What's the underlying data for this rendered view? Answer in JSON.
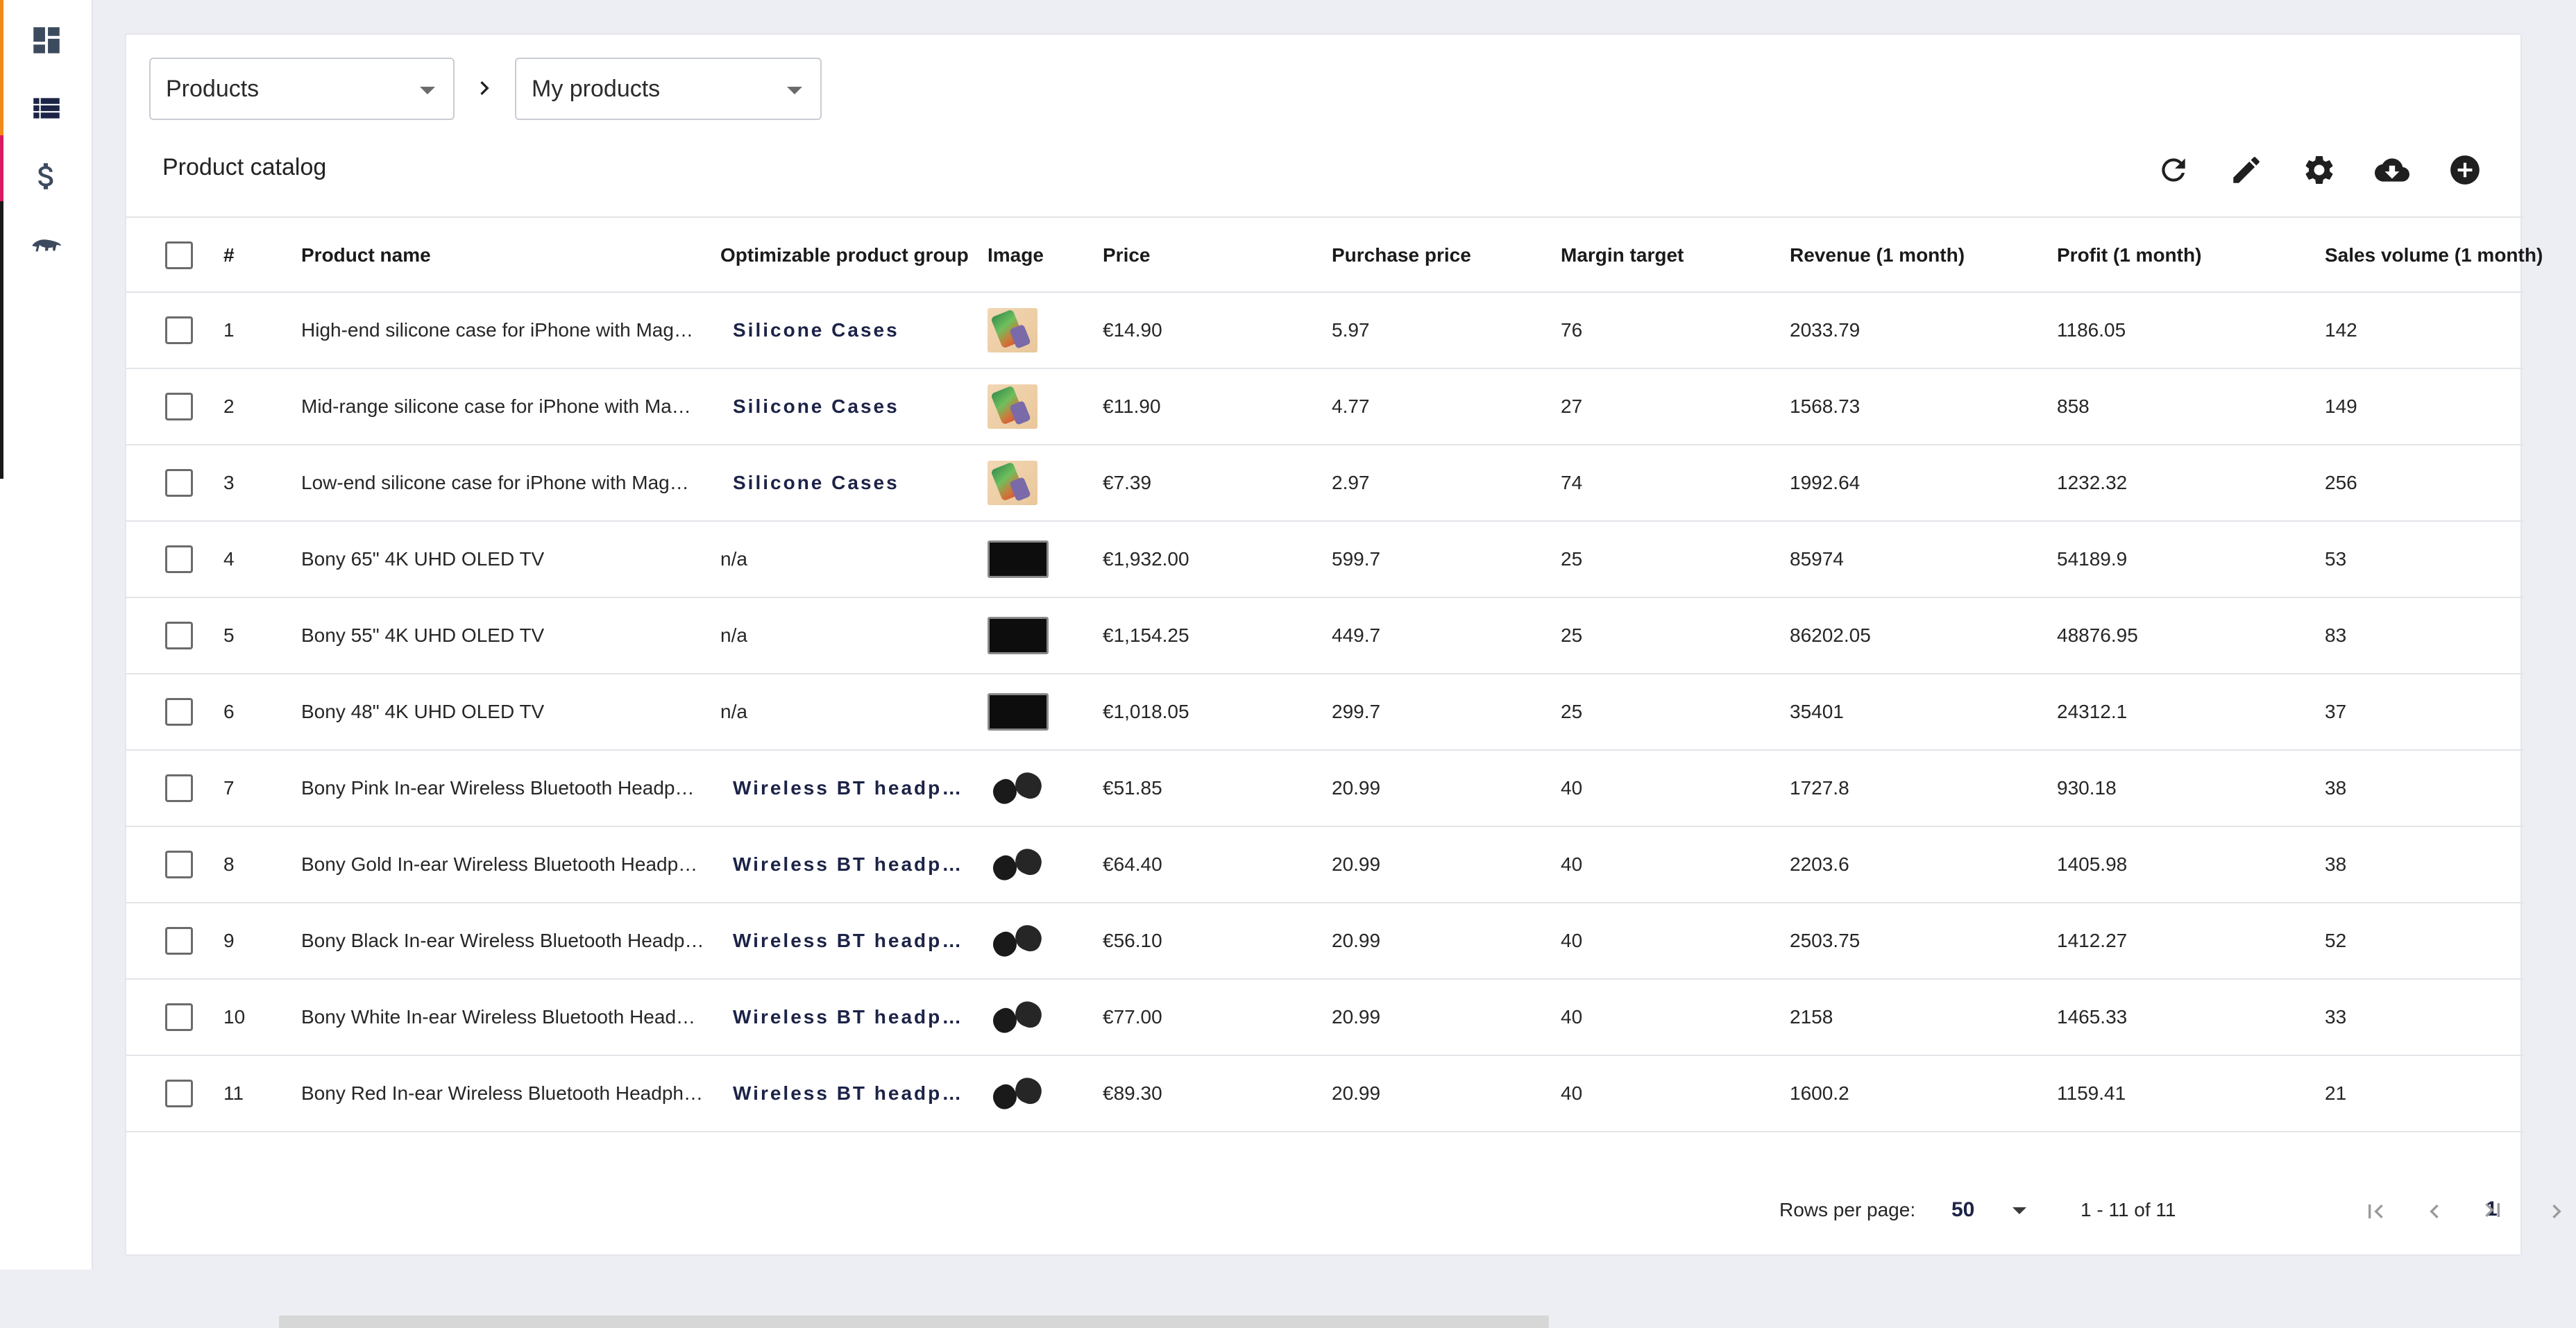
{
  "colors": {
    "accent_orange": "#f28a1b",
    "accent_magenta": "#d81b60",
    "nav_blue": "#1c2347",
    "icon_dark": "#1f1f1f"
  },
  "sidebar": {
    "items": [
      {
        "icon": "dashboard-icon"
      },
      {
        "icon": "list-icon",
        "active": true
      },
      {
        "icon": "dollar-icon"
      },
      {
        "icon": "anteater-icon"
      }
    ]
  },
  "breadcrumb": {
    "first_select": "Products",
    "separator_icon": "chevron-right-icon",
    "second_select": "My products"
  },
  "toolbar": {
    "title": "Product catalog",
    "buttons": [
      "refresh-icon",
      "edit-icon",
      "settings-icon",
      "cloud-download-icon",
      "add-circle-icon"
    ]
  },
  "table": {
    "columns": [
      "#",
      "Product name",
      "Optimizable product group",
      "Image",
      "Price",
      "Purchase price",
      "Margin target",
      "Revenue (1 month)",
      "Profit (1 month)",
      "Sales volume (1 month)"
    ],
    "rows": [
      {
        "num": "1",
        "name": "High-end silicone case for iPhone with Mag…",
        "group": "Silicone Cases",
        "group_linked": true,
        "image": "case",
        "price": "€14.90",
        "purchase": "5.97",
        "margin": "76",
        "revenue": "2033.79",
        "profit": "1186.05",
        "sales": "142"
      },
      {
        "num": "2",
        "name": "Mid-range silicone case for iPhone with Ma…",
        "group": "Silicone Cases",
        "group_linked": true,
        "image": "case",
        "price": "€11.90",
        "purchase": "4.77",
        "margin": "27",
        "revenue": "1568.73",
        "profit": "858",
        "sales": "149"
      },
      {
        "num": "3",
        "name": "Low-end silicone case for iPhone with Mag…",
        "group": "Silicone Cases",
        "group_linked": true,
        "image": "case",
        "price": "€7.39",
        "purchase": "2.97",
        "margin": "74",
        "revenue": "1992.64",
        "profit": "1232.32",
        "sales": "256"
      },
      {
        "num": "4",
        "name": "Bony 65\" 4K UHD OLED TV",
        "group": "n/a",
        "group_linked": false,
        "image": "tv",
        "price": "€1,932.00",
        "purchase": "599.7",
        "margin": "25",
        "revenue": "85974",
        "profit": "54189.9",
        "sales": "53"
      },
      {
        "num": "5",
        "name": "Bony 55\" 4K UHD OLED TV",
        "group": "n/a",
        "group_linked": false,
        "image": "tv",
        "price": "€1,154.25",
        "purchase": "449.7",
        "margin": "25",
        "revenue": "86202.05",
        "profit": "48876.95",
        "sales": "83"
      },
      {
        "num": "6",
        "name": "Bony 48\" 4K UHD OLED TV",
        "group": "n/a",
        "group_linked": false,
        "image": "tv",
        "price": "€1,018.05",
        "purchase": "299.7",
        "margin": "25",
        "revenue": "35401",
        "profit": "24312.1",
        "sales": "37"
      },
      {
        "num": "7",
        "name": "Bony Pink In-ear Wireless Bluetooth Headp…",
        "group": "Wireless BT headp…",
        "group_linked": true,
        "image": "buds",
        "price": "€51.85",
        "purchase": "20.99",
        "margin": "40",
        "revenue": "1727.8",
        "profit": "930.18",
        "sales": "38"
      },
      {
        "num": "8",
        "name": "Bony Gold In-ear Wireless Bluetooth Headp…",
        "group": "Wireless BT headp…",
        "group_linked": true,
        "image": "buds",
        "price": "€64.40",
        "purchase": "20.99",
        "margin": "40",
        "revenue": "2203.6",
        "profit": "1405.98",
        "sales": "38"
      },
      {
        "num": "9",
        "name": "Bony Black In-ear Wireless Bluetooth Headp…",
        "group": "Wireless BT headp…",
        "group_linked": true,
        "image": "buds",
        "price": "€56.10",
        "purchase": "20.99",
        "margin": "40",
        "revenue": "2503.75",
        "profit": "1412.27",
        "sales": "52"
      },
      {
        "num": "10",
        "name": "Bony White In-ear Wireless Bluetooth Head…",
        "group": "Wireless BT headp…",
        "group_linked": true,
        "image": "buds",
        "price": "€77.00",
        "purchase": "20.99",
        "margin": "40",
        "revenue": "2158",
        "profit": "1465.33",
        "sales": "33"
      },
      {
        "num": "11",
        "name": "Bony Red In-ear Wireless Bluetooth Headph…",
        "group": "Wireless BT headp…",
        "group_linked": true,
        "image": "buds",
        "price": "€89.30",
        "purchase": "20.99",
        "margin": "40",
        "revenue": "1600.2",
        "profit": "1159.41",
        "sales": "21"
      }
    ]
  },
  "pagination": {
    "rows_per_page_label": "Rows per page:",
    "rows_per_page_value": "50",
    "range_text": "1 - 11 of 11",
    "current_page": "1"
  }
}
